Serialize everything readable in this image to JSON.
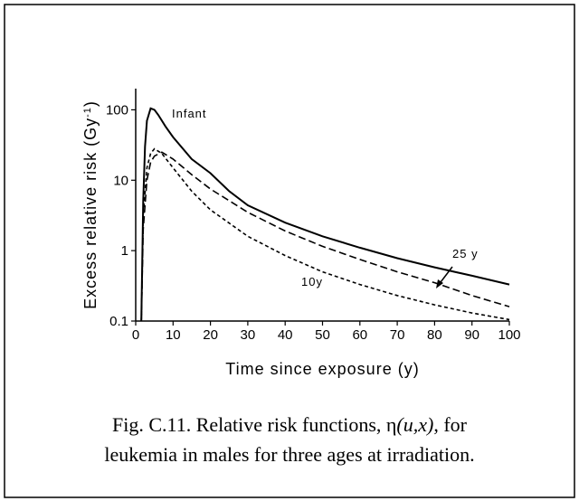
{
  "chart_data": {
    "type": "line",
    "xlabel": "Time since exposure (y)",
    "ylabel": [
      "Excess relative risk (Gy",
      "-1",
      ")"
    ],
    "xlim": [
      0,
      100
    ],
    "xticks": [
      0,
      10,
      20,
      30,
      40,
      50,
      60,
      70,
      80,
      90,
      100
    ],
    "ylim": [
      0.1,
      200
    ],
    "yticks": [
      0.1,
      1,
      10,
      100
    ],
    "log_y": true,
    "grid": false,
    "series": [
      {
        "name": "Infant",
        "color": "#000000",
        "dash": "none",
        "x": [
          1.5,
          2,
          2.5,
          3,
          4,
          5,
          6,
          8,
          10,
          15,
          20,
          25,
          30,
          40,
          50,
          60,
          70,
          80,
          90,
          100
        ],
        "values": [
          0.1,
          5,
          30,
          70,
          105,
          100,
          85,
          58,
          41,
          20,
          12.6,
          7,
          4.4,
          2.5,
          1.6,
          1.1,
          0.78,
          0.58,
          0.44,
          0.33
        ]
      },
      {
        "name": "25 y",
        "color": "#000000",
        "dash": "8,4",
        "x": [
          1.5,
          2,
          3,
          4,
          5,
          7,
          10,
          15,
          20,
          30,
          40,
          50,
          60,
          70,
          80,
          90,
          100
        ],
        "values": [
          0.1,
          2,
          10,
          18,
          22,
          25,
          20,
          12,
          7.5,
          3.5,
          1.9,
          1.15,
          0.75,
          0.5,
          0.35,
          0.23,
          0.16
        ]
      },
      {
        "name": "10y",
        "color": "#000000",
        "dash": "4,3",
        "x": [
          1.5,
          2,
          3,
          4,
          5,
          7,
          10,
          15,
          20,
          30,
          40,
          50,
          60,
          70,
          80,
          90,
          100
        ],
        "values": [
          0.1,
          3,
          15,
          24,
          28,
          24,
          15,
          7,
          3.8,
          1.6,
          0.85,
          0.5,
          0.33,
          0.23,
          0.17,
          0.13,
          0.105
        ]
      }
    ]
  },
  "caption": {
    "lines": [
      [
        "Fig. C.11.  Relative risk functions, η",
        "(u,x)",
        ", for"
      ],
      [
        "leukemia in males for three ages at irradiation."
      ]
    ]
  }
}
